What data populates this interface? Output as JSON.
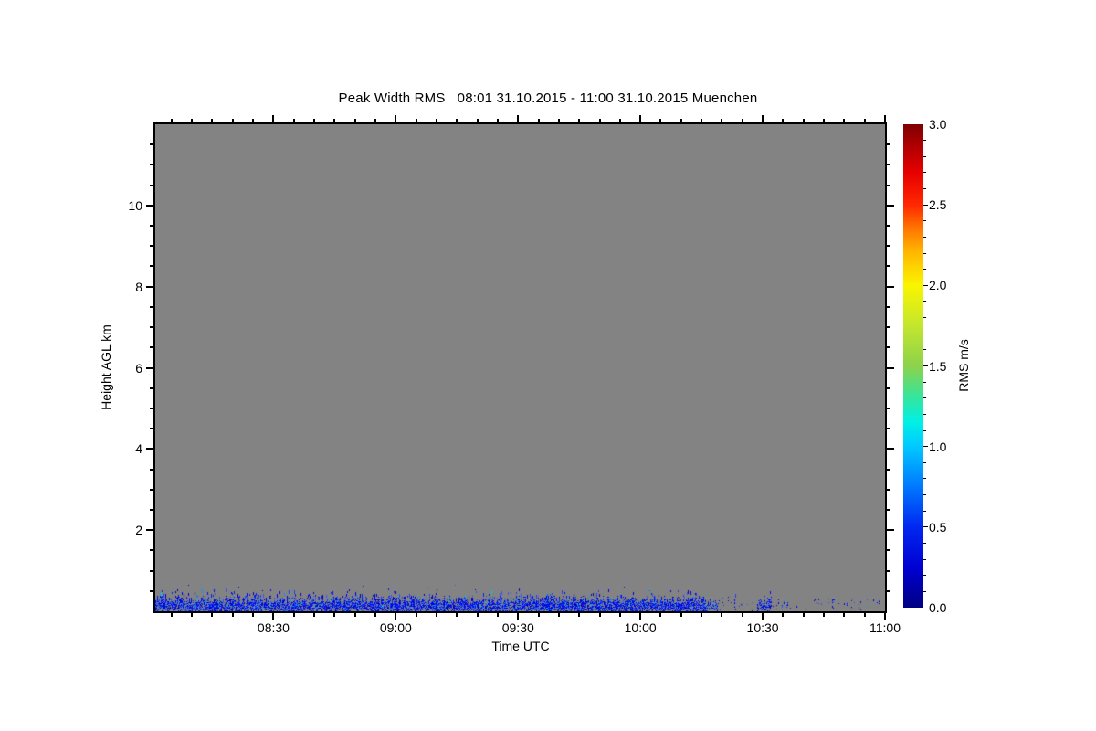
{
  "chart_data": {
    "type": "heatmap",
    "title": "Peak Width RMS   08:01 31.10.2015 - 11:00 31.10.2015 Muenchen",
    "xlabel": "Time UTC",
    "ylabel": "Height AGL km",
    "x_start": "08:01",
    "x_end": "11:00",
    "x_tick_labels": [
      "08:30",
      "09:00",
      "09:30",
      "10:00",
      "10:30",
      "11:00"
    ],
    "x_minor_step_min": 5,
    "ylim_km": [
      0,
      12
    ],
    "y_tick_labels": [
      "2",
      "4",
      "6",
      "8",
      "10"
    ],
    "y_tick_values": [
      2,
      4,
      6,
      8,
      10
    ],
    "y_minor_step_km": 0.5,
    "grid": false,
    "no_data_color": "#838383",
    "frame_color": "#000000",
    "colorbar": {
      "label": "RMS m/s",
      "min": 0.0,
      "max": 3.0,
      "tick_labels": [
        "0.0",
        "0.5",
        "1.0",
        "1.5",
        "2.0",
        "2.5",
        "3.0"
      ],
      "tick_values": [
        0.0,
        0.5,
        1.0,
        1.5,
        2.0,
        2.5,
        3.0
      ],
      "minor_step": 0.1,
      "position": "right",
      "stops": [
        {
          "v": 0.0,
          "c": "#000082"
        },
        {
          "v": 0.25,
          "c": "#0000d2"
        },
        {
          "v": 0.5,
          "c": "#0028f0"
        },
        {
          "v": 0.75,
          "c": "#0078ff"
        },
        {
          "v": 1.0,
          "c": "#00c8ff"
        },
        {
          "v": 1.15,
          "c": "#00f0e6"
        },
        {
          "v": 1.3,
          "c": "#32e6a0"
        },
        {
          "v": 1.5,
          "c": "#8cd24b"
        },
        {
          "v": 1.75,
          "c": "#c3e62e"
        },
        {
          "v": 2.0,
          "c": "#faf500"
        },
        {
          "v": 2.2,
          "c": "#ffb900"
        },
        {
          "v": 2.35,
          "c": "#ff7800"
        },
        {
          "v": 2.5,
          "c": "#ff2800"
        },
        {
          "v": 2.7,
          "c": "#e60000"
        },
        {
          "v": 2.85,
          "c": "#b40000"
        },
        {
          "v": 3.0,
          "c": "#800000"
        }
      ]
    },
    "data_summary": {
      "description": "Time-height field is empty (no-signal gray) everywhere except a noisy near-surface boundary-layer band of low RMS values.",
      "band_value_range_m_s": [
        0.1,
        0.6
      ],
      "band_core_height_km": [
        0.0,
        0.35
      ],
      "band_spike_height_km": 0.55,
      "band_palette": [
        "#0000b4",
        "#0000e6",
        "#0014ff",
        "#1e3cff",
        "#0028dc",
        "#3c50ff",
        "#0064ff",
        "#0096ff",
        "#00c8e6"
      ],
      "segments": [
        {
          "start": "08:01",
          "end": "10:16",
          "density": 0.85,
          "character": "dense continuous noisy band"
        },
        {
          "start": "10:16",
          "end": "10:32",
          "density": 0.35,
          "character": "broken clusters with gray gaps"
        },
        {
          "start": "10:32",
          "end": "11:00",
          "density": 0.07,
          "character": "sparse isolated specks"
        }
      ]
    }
  }
}
